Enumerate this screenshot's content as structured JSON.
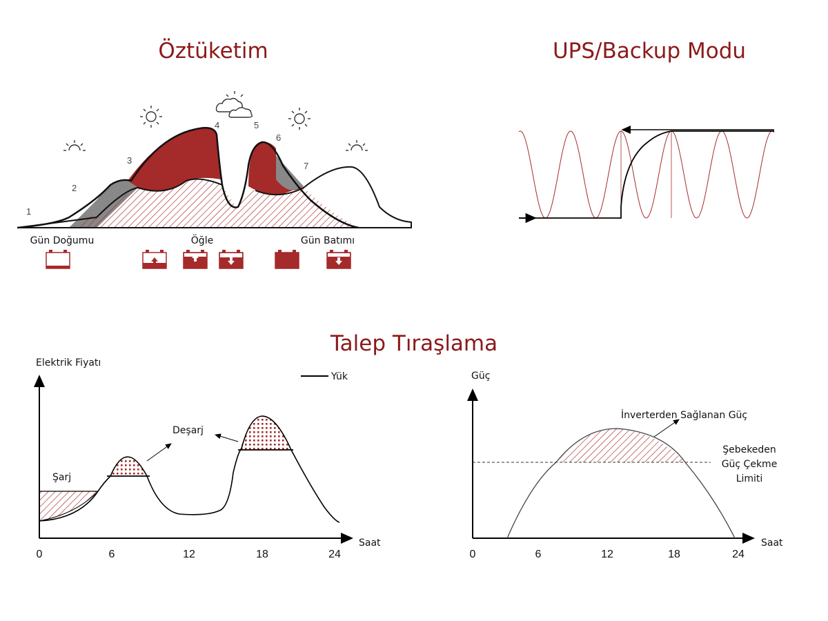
{
  "titles": {
    "self_consumption": "Öztüketim",
    "ups": "UPS/Backup Modu",
    "peak_shaving": "Talep Tıraşlama"
  },
  "self_consumption": {
    "stage_numbers": [
      "1",
      "2",
      "3",
      "4",
      "5",
      "6",
      "7"
    ],
    "labels": {
      "sunrise": "Gün Doğumu",
      "noon": "Öğle",
      "sunset": "Gün Batımı"
    },
    "battery_icons": [
      "empty",
      "charging-low",
      "charging-high",
      "discharging",
      "full",
      "discharging"
    ],
    "colors": {
      "accent": "#a52a2a",
      "grey": "#888888"
    }
  },
  "peak_left": {
    "ylabel": "Elektrik Fiyatı",
    "xlabel": "Saat",
    "x_ticks": [
      "0",
      "6",
      "12",
      "18",
      "24"
    ],
    "legend": "Yük",
    "labels": {
      "charge": "Şarj",
      "discharge": "Deşarj"
    }
  },
  "peak_right": {
    "ylabel": "Güç",
    "xlabel": "Saat",
    "x_ticks": [
      "0",
      "6",
      "12",
      "18",
      "24"
    ],
    "inverter_label": "İnverterden Sağlanan Güç",
    "limit_label": [
      "Şebekeden",
      "Güç Çekme",
      "Limiti"
    ]
  }
}
